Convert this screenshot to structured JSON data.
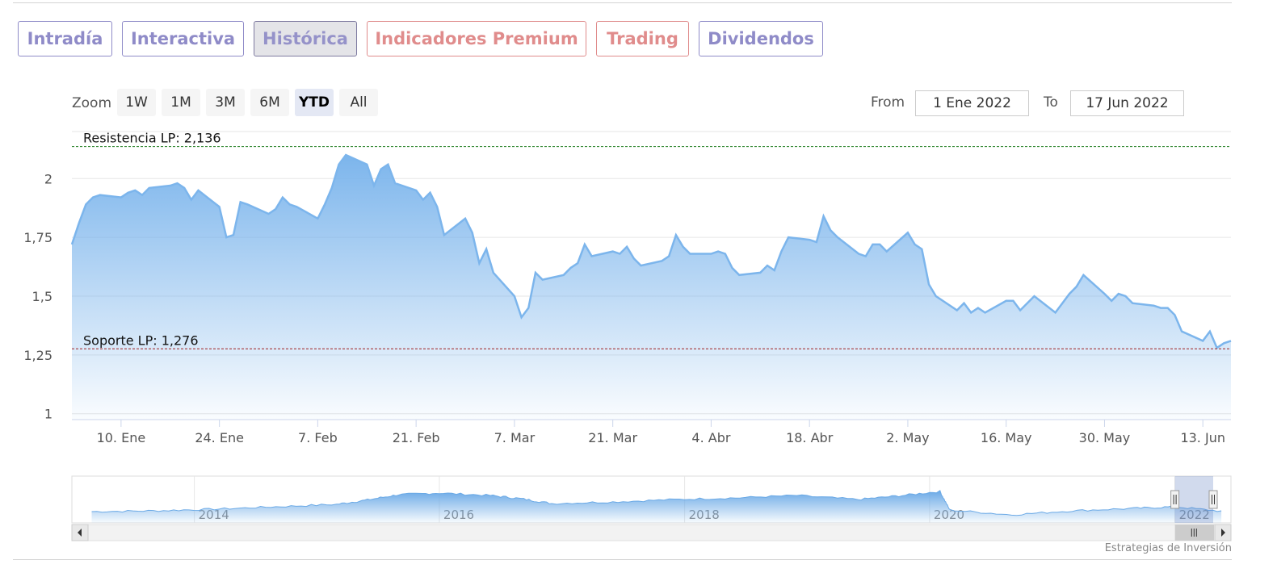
{
  "tabs": [
    {
      "label": "Intradía",
      "style": "purple",
      "active": false
    },
    {
      "label": "Interactiva",
      "style": "purple",
      "active": false
    },
    {
      "label": "Histórica",
      "style": "purple",
      "active": true
    },
    {
      "label": "Indicadores Premium",
      "style": "red",
      "active": false
    },
    {
      "label": "Trading",
      "style": "red",
      "active": false
    },
    {
      "label": "Dividendos",
      "style": "purple",
      "active": false
    }
  ],
  "range_selector": {
    "zoom_label": "Zoom",
    "buttons": [
      "1W",
      "1M",
      "3M",
      "6M",
      "YTD",
      "All"
    ],
    "selected": "YTD",
    "from_label": "From",
    "from_value": "1 Ene 2022",
    "to_label": "To",
    "to_value": "17 Jun 2022"
  },
  "chart_data": {
    "type": "area",
    "title": "",
    "xlabel": "",
    "ylabel": "",
    "x_start": "2022-01-03",
    "x_end": "2022-06-17",
    "ylim": [
      0.975,
      2.2
    ],
    "y_ticks": [
      {
        "value": 1.0,
        "label": "1"
      },
      {
        "value": 1.25,
        "label": "1,25"
      },
      {
        "value": 1.5,
        "label": "1,5"
      },
      {
        "value": 1.75,
        "label": "1,75"
      },
      {
        "value": 2.0,
        "label": "2"
      }
    ],
    "x_ticks": [
      {
        "date": "2022-01-10",
        "label": "10. Ene"
      },
      {
        "date": "2022-01-24",
        "label": "24. Ene"
      },
      {
        "date": "2022-02-07",
        "label": "7. Feb"
      },
      {
        "date": "2022-02-21",
        "label": "21. Feb"
      },
      {
        "date": "2022-03-07",
        "label": "7. Mar"
      },
      {
        "date": "2022-03-21",
        "label": "21. Mar"
      },
      {
        "date": "2022-04-04",
        "label": "4. Abr"
      },
      {
        "date": "2022-04-18",
        "label": "18. Abr"
      },
      {
        "date": "2022-05-02",
        "label": "2. May"
      },
      {
        "date": "2022-05-16",
        "label": "16. May"
      },
      {
        "date": "2022-05-30",
        "label": "30. May"
      },
      {
        "date": "2022-06-13",
        "label": "13. Jun"
      }
    ],
    "series": [
      {
        "color": "#7cb5ec",
        "points": [
          [
            "2022-01-03",
            1.72
          ],
          [
            "2022-01-04",
            1.81
          ],
          [
            "2022-01-05",
            1.89
          ],
          [
            "2022-01-06",
            1.92
          ],
          [
            "2022-01-07",
            1.93
          ],
          [
            "2022-01-10",
            1.92
          ],
          [
            "2022-01-11",
            1.94
          ],
          [
            "2022-01-12",
            1.95
          ],
          [
            "2022-01-13",
            1.93
          ],
          [
            "2022-01-14",
            1.96
          ],
          [
            "2022-01-17",
            1.97
          ],
          [
            "2022-01-18",
            1.98
          ],
          [
            "2022-01-19",
            1.96
          ],
          [
            "2022-01-20",
            1.91
          ],
          [
            "2022-01-21",
            1.95
          ],
          [
            "2022-01-24",
            1.88
          ],
          [
            "2022-01-25",
            1.75
          ],
          [
            "2022-01-26",
            1.76
          ],
          [
            "2022-01-27",
            1.9
          ],
          [
            "2022-01-28",
            1.89
          ],
          [
            "2022-01-31",
            1.85
          ],
          [
            "2022-02-01",
            1.87
          ],
          [
            "2022-02-02",
            1.92
          ],
          [
            "2022-02-03",
            1.89
          ],
          [
            "2022-02-04",
            1.88
          ],
          [
            "2022-02-07",
            1.83
          ],
          [
            "2022-02-08",
            1.89
          ],
          [
            "2022-02-09",
            1.96
          ],
          [
            "2022-02-10",
            2.06
          ],
          [
            "2022-02-11",
            2.1
          ],
          [
            "2022-02-14",
            2.06
          ],
          [
            "2022-02-15",
            1.97
          ],
          [
            "2022-02-16",
            2.04
          ],
          [
            "2022-02-17",
            2.06
          ],
          [
            "2022-02-18",
            1.98
          ],
          [
            "2022-02-21",
            1.95
          ],
          [
            "2022-02-22",
            1.91
          ],
          [
            "2022-02-23",
            1.94
          ],
          [
            "2022-02-24",
            1.88
          ],
          [
            "2022-02-25",
            1.76
          ],
          [
            "2022-02-28",
            1.83
          ],
          [
            "2022-03-01",
            1.77
          ],
          [
            "2022-03-02",
            1.64
          ],
          [
            "2022-03-03",
            1.7
          ],
          [
            "2022-03-04",
            1.6
          ],
          [
            "2022-03-07",
            1.5
          ],
          [
            "2022-03-08",
            1.41
          ],
          [
            "2022-03-09",
            1.45
          ],
          [
            "2022-03-10",
            1.6
          ],
          [
            "2022-03-11",
            1.57
          ],
          [
            "2022-03-14",
            1.59
          ],
          [
            "2022-03-15",
            1.62
          ],
          [
            "2022-03-16",
            1.64
          ],
          [
            "2022-03-17",
            1.72
          ],
          [
            "2022-03-18",
            1.67
          ],
          [
            "2022-03-21",
            1.69
          ],
          [
            "2022-03-22",
            1.68
          ],
          [
            "2022-03-23",
            1.71
          ],
          [
            "2022-03-24",
            1.66
          ],
          [
            "2022-03-25",
            1.63
          ],
          [
            "2022-03-28",
            1.65
          ],
          [
            "2022-03-29",
            1.67
          ],
          [
            "2022-03-30",
            1.76
          ],
          [
            "2022-03-31",
            1.71
          ],
          [
            "2022-04-01",
            1.68
          ],
          [
            "2022-04-04",
            1.68
          ],
          [
            "2022-04-05",
            1.69
          ],
          [
            "2022-04-06",
            1.68
          ],
          [
            "2022-04-07",
            1.62
          ],
          [
            "2022-04-08",
            1.59
          ],
          [
            "2022-04-11",
            1.6
          ],
          [
            "2022-04-12",
            1.63
          ],
          [
            "2022-04-13",
            1.61
          ],
          [
            "2022-04-14",
            1.69
          ],
          [
            "2022-04-15",
            1.75
          ],
          [
            "2022-04-18",
            1.74
          ],
          [
            "2022-04-19",
            1.73
          ],
          [
            "2022-04-20",
            1.84
          ],
          [
            "2022-04-21",
            1.78
          ],
          [
            "2022-04-22",
            1.75
          ],
          [
            "2022-04-25",
            1.68
          ],
          [
            "2022-04-26",
            1.67
          ],
          [
            "2022-04-27",
            1.72
          ],
          [
            "2022-04-28",
            1.72
          ],
          [
            "2022-04-29",
            1.69
          ],
          [
            "2022-05-02",
            1.77
          ],
          [
            "2022-05-03",
            1.72
          ],
          [
            "2022-05-04",
            1.7
          ],
          [
            "2022-05-05",
            1.55
          ],
          [
            "2022-05-06",
            1.5
          ],
          [
            "2022-05-09",
            1.44
          ],
          [
            "2022-05-10",
            1.47
          ],
          [
            "2022-05-11",
            1.43
          ],
          [
            "2022-05-12",
            1.45
          ],
          [
            "2022-05-13",
            1.43
          ],
          [
            "2022-05-16",
            1.48
          ],
          [
            "2022-05-17",
            1.48
          ],
          [
            "2022-05-18",
            1.44
          ],
          [
            "2022-05-19",
            1.47
          ],
          [
            "2022-05-20",
            1.5
          ],
          [
            "2022-05-23",
            1.43
          ],
          [
            "2022-05-24",
            1.47
          ],
          [
            "2022-05-25",
            1.51
          ],
          [
            "2022-05-26",
            1.54
          ],
          [
            "2022-05-27",
            1.59
          ],
          [
            "2022-05-30",
            1.51
          ],
          [
            "2022-05-31",
            1.48
          ],
          [
            "2022-06-01",
            1.51
          ],
          [
            "2022-06-02",
            1.5
          ],
          [
            "2022-06-03",
            1.47
          ],
          [
            "2022-06-06",
            1.46
          ],
          [
            "2022-06-07",
            1.45
          ],
          [
            "2022-06-08",
            1.45
          ],
          [
            "2022-06-09",
            1.42
          ],
          [
            "2022-06-10",
            1.35
          ],
          [
            "2022-06-13",
            1.31
          ],
          [
            "2022-06-14",
            1.35
          ],
          [
            "2022-06-15",
            1.28
          ],
          [
            "2022-06-16",
            1.3
          ],
          [
            "2022-06-17",
            1.31
          ]
        ]
      }
    ],
    "plot_lines": [
      {
        "value": 2.136,
        "label": "Resistencia LP: 2,136",
        "color": "#1a7a1a"
      },
      {
        "value": 1.276,
        "label": "Soporte LP: 1,276",
        "color": "#a02020"
      }
    ],
    "grid": true,
    "legend": "none",
    "navigator": {
      "x_start": "2013-01-01",
      "x_end": "2022-06-17",
      "year_labels": [
        "2014",
        "2016",
        "2018",
        "2020",
        "2022"
      ],
      "selection": {
        "from": "2022-01-01",
        "to": "2022-06-17"
      },
      "points": [
        [
          "2013-03",
          0.16
        ],
        [
          "2013-09",
          0.18
        ],
        [
          "2014-03",
          0.22
        ],
        [
          "2014-09",
          0.28
        ],
        [
          "2015-03",
          0.34
        ],
        [
          "2015-06",
          0.45
        ],
        [
          "2015-09",
          0.58
        ],
        [
          "2016-01",
          0.62
        ],
        [
          "2016-06",
          0.56
        ],
        [
          "2016-09",
          0.48
        ],
        [
          "2016-12",
          0.36
        ],
        [
          "2017-06",
          0.4
        ],
        [
          "2017-12",
          0.46
        ],
        [
          "2018-06",
          0.5
        ],
        [
          "2018-12",
          0.56
        ],
        [
          "2019-06",
          0.46
        ],
        [
          "2019-10",
          0.55
        ],
        [
          "2020-02",
          0.66
        ],
        [
          "2020-03",
          0.2
        ],
        [
          "2020-09",
          0.08
        ],
        [
          "2021-03",
          0.18
        ],
        [
          "2021-09",
          0.24
        ],
        [
          "2022-01",
          0.28
        ],
        [
          "2022-06",
          0.16
        ]
      ]
    },
    "credit": "Estrategias de Inversión"
  }
}
